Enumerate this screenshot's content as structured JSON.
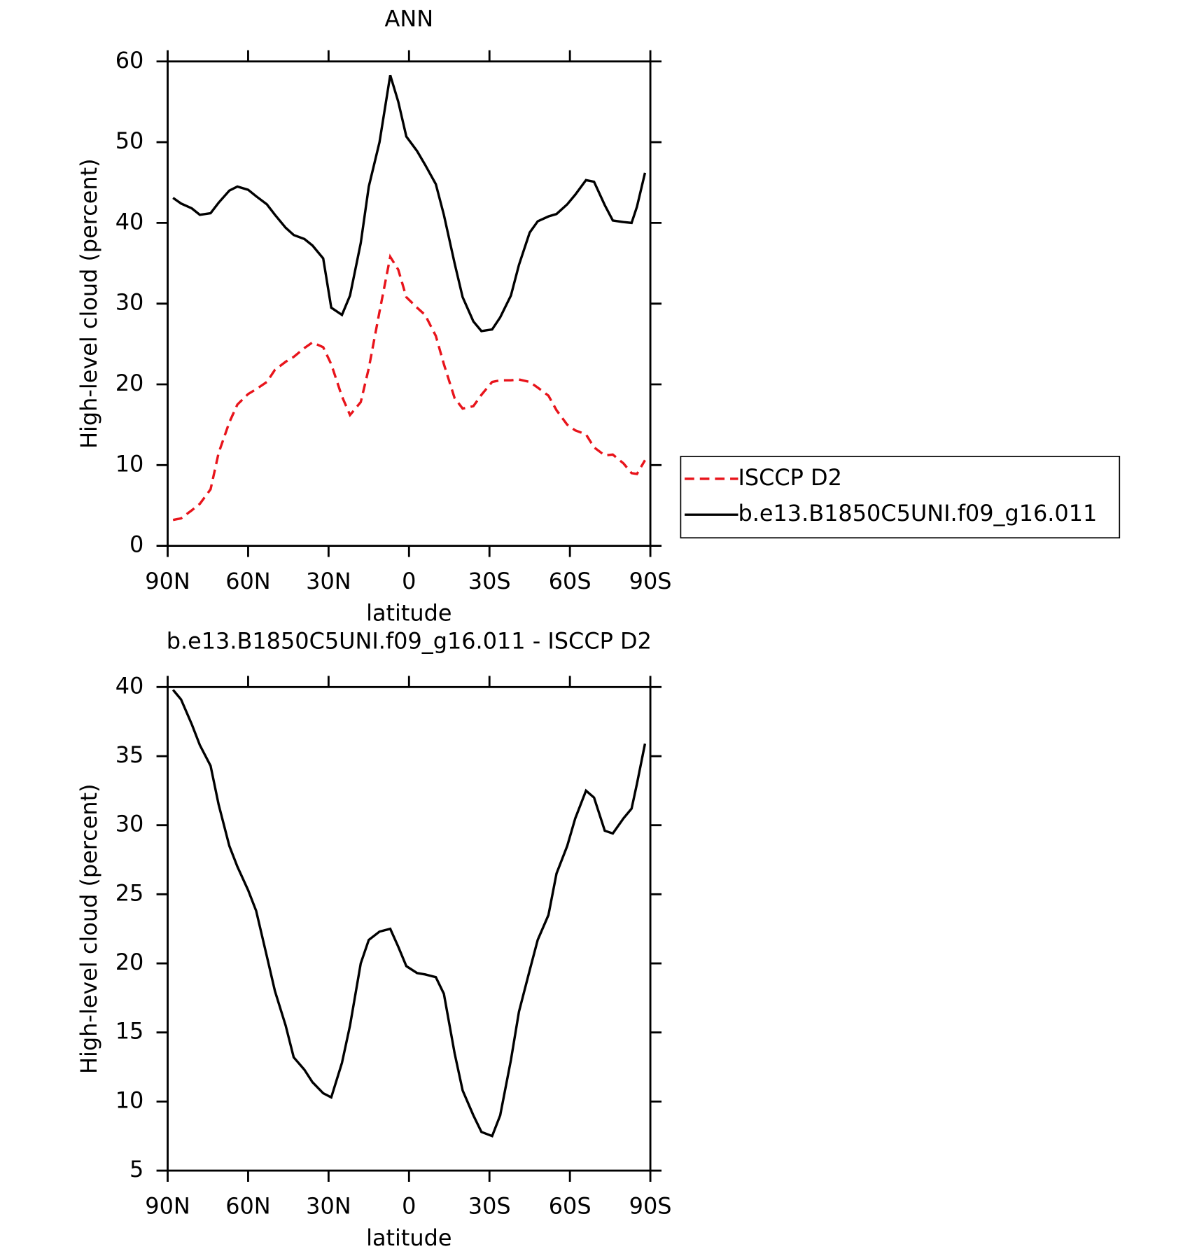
{
  "chart_data": [
    {
      "type": "line",
      "title": "ANN",
      "x_label": "latitude",
      "y_label": "High-level cloud (percent)",
      "x": [
        88,
        85,
        81,
        78,
        74,
        71,
        67,
        64,
        60,
        57,
        53,
        50,
        46,
        43,
        39,
        36,
        32,
        29,
        25,
        22,
        18,
        15,
        11,
        7,
        4,
        1,
        -3,
        -6,
        -10,
        -13,
        -17,
        -20,
        -24,
        -27,
        -31,
        -34,
        -38,
        -41,
        -45,
        -48,
        -52,
        -55,
        -59,
        -62,
        -66,
        -69,
        -73,
        -76,
        -80,
        -83,
        -85,
        -88
      ],
      "xlim": [
        90,
        -90
      ],
      "xticks": [
        {
          "value": 90,
          "label": "90N"
        },
        {
          "value": 60,
          "label": "60N"
        },
        {
          "value": 30,
          "label": "30N"
        },
        0,
        {
          "value": -30,
          "label": "30S"
        },
        {
          "value": -60,
          "label": "60S"
        },
        {
          "value": -90,
          "label": "90S"
        }
      ],
      "ylim": [
        0,
        60
      ],
      "yticks": [
        0,
        10,
        20,
        30,
        40,
        50,
        60
      ],
      "legend": "right",
      "series": [
        {
          "name": "ISCCP D2",
          "color": "#e8141b",
          "dash": "dashed",
          "values": [
            3.2,
            3.4,
            4.4,
            5.2,
            7.0,
            11.5,
            15.3,
            17.5,
            18.8,
            19.4,
            20.3,
            21.8,
            22.8,
            23.4,
            24.5,
            25.2,
            24.6,
            22.5,
            18.5,
            16.2,
            17.8,
            22.0,
            29.0,
            35.8,
            34.2,
            30.8,
            29.5,
            28.6,
            26.0,
            22.5,
            18.3,
            17.0,
            17.3,
            18.7,
            20.3,
            20.5,
            20.5,
            20.6,
            20.3,
            19.6,
            18.6,
            16.8,
            15.0,
            14.3,
            13.8,
            12.2,
            11.2,
            11.3,
            10.2,
            9.0,
            8.9,
            10.6
          ]
        },
        {
          "name": "b.e13.B1850C5UNI.f09_g16.011",
          "color": "#000000",
          "dash": "solid",
          "values": [
            43.1,
            42.4,
            41.8,
            41.0,
            41.2,
            42.5,
            44.0,
            44.5,
            44.1,
            43.3,
            42.3,
            41.0,
            39.4,
            38.5,
            38.0,
            37.2,
            35.6,
            29.5,
            28.6,
            31.0,
            37.5,
            44.5,
            50.0,
            58.3,
            55.0,
            50.7,
            48.9,
            47.2,
            44.8,
            41.0,
            35.0,
            30.8,
            27.8,
            26.6,
            26.8,
            28.3,
            31.0,
            34.8,
            38.8,
            40.2,
            40.8,
            41.1,
            42.3,
            43.5,
            45.3,
            45.1,
            42.2,
            40.3,
            40.1,
            40.0,
            42.0,
            46.2
          ]
        }
      ]
    },
    {
      "type": "line",
      "title": "b.e13.B1850C5UNI.f09_g16.011 - ISCCP D2",
      "x_label": "latitude",
      "y_label": "High-level cloud (percent)",
      "x": [
        88,
        85,
        81,
        78,
        74,
        71,
        67,
        64,
        60,
        57,
        53,
        50,
        46,
        43,
        39,
        36,
        32,
        29,
        25,
        22,
        18,
        15,
        11,
        7,
        4,
        1,
        -3,
        -6,
        -10,
        -13,
        -17,
        -20,
        -24,
        -27,
        -31,
        -34,
        -38,
        -41,
        -45,
        -48,
        -52,
        -55,
        -59,
        -62,
        -66,
        -69,
        -73,
        -76,
        -80,
        -83,
        -85,
        -88
      ],
      "xlim": [
        90,
        -90
      ],
      "xticks": [
        {
          "value": 90,
          "label": "90N"
        },
        {
          "value": 60,
          "label": "60N"
        },
        {
          "value": 30,
          "label": "30N"
        },
        0,
        {
          "value": -30,
          "label": "30S"
        },
        {
          "value": -60,
          "label": "60S"
        },
        {
          "value": -90,
          "label": "90S"
        }
      ],
      "ylim": [
        5,
        40
      ],
      "yticks": [
        5,
        10,
        15,
        20,
        25,
        30,
        35,
        40
      ],
      "series": [
        {
          "color": "#000000",
          "dash": "solid",
          "values": [
            39.8,
            39.1,
            37.3,
            35.8,
            34.3,
            31.5,
            28.5,
            27.0,
            25.3,
            23.8,
            20.5,
            18.0,
            15.5,
            13.2,
            12.3,
            11.4,
            10.6,
            10.3,
            12.8,
            15.5,
            20.0,
            21.7,
            22.3,
            22.5,
            21.2,
            19.8,
            19.3,
            19.2,
            19.0,
            17.8,
            13.5,
            10.8,
            9.0,
            7.8,
            7.5,
            9.0,
            13.0,
            16.5,
            19.5,
            21.7,
            23.5,
            26.5,
            28.5,
            30.5,
            32.5,
            32.0,
            29.6,
            29.4,
            30.5,
            31.2,
            33.0,
            35.9
          ]
        }
      ]
    }
  ]
}
